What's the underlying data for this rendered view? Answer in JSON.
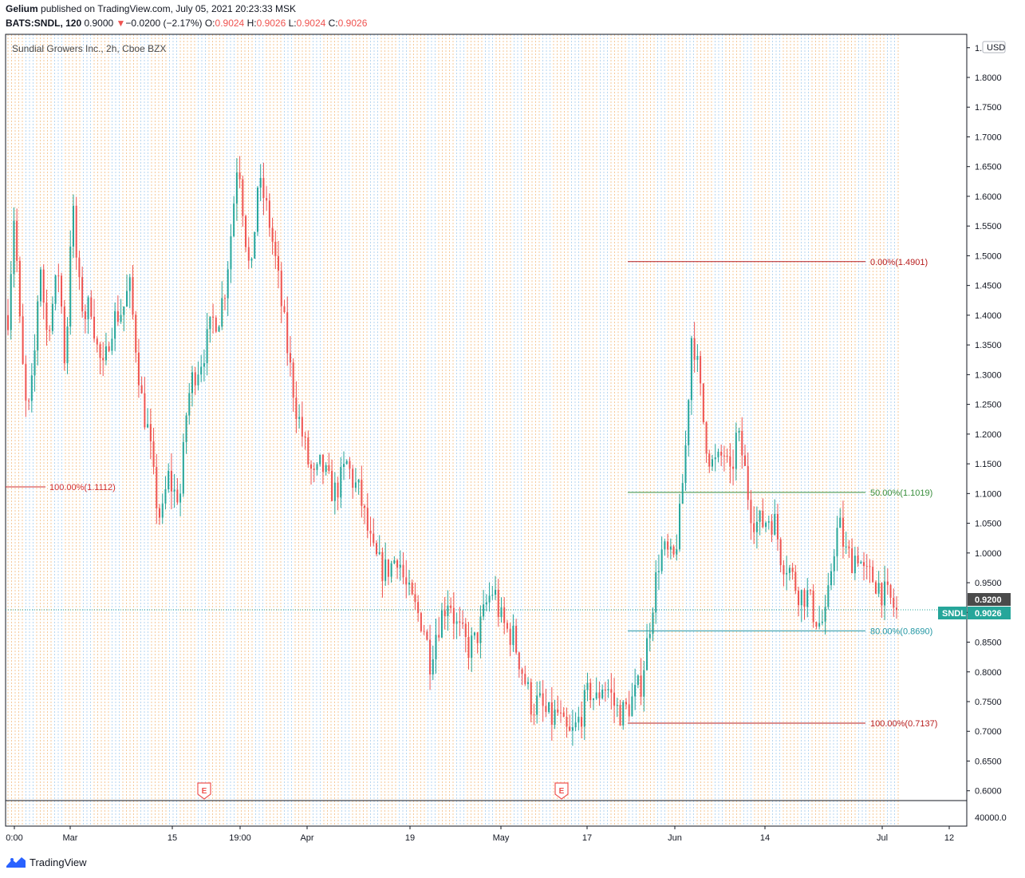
{
  "header": {
    "publisher": "Gelium",
    "published_text": "published on TradingView.com, July 05, 2021 20:23:33 MSK",
    "symbol": "BATS:SNDL, 120",
    "last_price": "0.9000",
    "change_arrow": "▼",
    "change": "−0.0200 (−2.17%)",
    "o_label": "O:",
    "o_value": "0.9024",
    "h_label": "H:",
    "h_value": "0.9026",
    "l_label": "L:",
    "l_value": "0.9024",
    "c_label": "C:",
    "c_value": "0.9026"
  },
  "chart_data": {
    "type": "candlestick",
    "title": "Sundial Growers Inc., 2h, Cboe BZX",
    "currency": "USD",
    "y_ticks": [
      "1.8500",
      "1.8000",
      "1.7500",
      "1.7000",
      "1.6500",
      "1.6000",
      "1.5500",
      "1.5000",
      "1.4500",
      "1.4000",
      "1.3500",
      "1.3000",
      "1.2500",
      "1.2000",
      "1.1500",
      "1.1000",
      "1.0500",
      "1.0000",
      "0.9500",
      "0.9000",
      "0.8500",
      "0.8000",
      "0.7500",
      "0.7000",
      "0.6500",
      "0.6000"
    ],
    "ylim": [
      0.5835,
      1.8725
    ],
    "x_ticks": [
      "0:00",
      "Mar",
      "15",
      "19:00",
      "Apr",
      "19",
      "May",
      "17",
      "Jun",
      "14",
      "Jul",
      "12"
    ],
    "volume_tick": "40000.0",
    "last_price_label": "0.9026",
    "symbol_badge": "SNDL",
    "prev_close_label": "0.9200",
    "earnings_markers": [
      "E",
      "E"
    ],
    "fib_retracements": [
      {
        "level_text": "100.00%(1.1112)",
        "price": 1.1112,
        "color": "#d32f2f"
      },
      {
        "level_text": "0.00%(1.4901)",
        "price": 1.4901,
        "color": "#b71c1c"
      },
      {
        "level_text": "50.00%(1.1019)",
        "price": 1.1019,
        "color": "#388e3c"
      },
      {
        "level_text": "80.00%(0.8690)",
        "price": 0.869,
        "color": "#2196a3"
      },
      {
        "level_text": "100.00%(0.7137)",
        "price": 0.7137,
        "color": "#b71c1c"
      }
    ],
    "series": [
      {
        "approx_path": [
          [
            0,
            1.4
          ],
          [
            1,
            1.58
          ],
          [
            2,
            1.35
          ],
          [
            3,
            1.22
          ],
          [
            4,
            1.3
          ],
          [
            5,
            1.5
          ],
          [
            6,
            1.37
          ],
          [
            7,
            1.42
          ],
          [
            8,
            1.48
          ],
          [
            9,
            1.3
          ],
          [
            10,
            1.6
          ],
          [
            11,
            1.45
          ],
          [
            12,
            1.4
          ],
          [
            13,
            1.42
          ],
          [
            14,
            1.34
          ],
          [
            15,
            1.3
          ],
          [
            16,
            1.38
          ],
          [
            17,
            1.4
          ],
          [
            18,
            1.41
          ],
          [
            19,
            1.45
          ],
          [
            20,
            1.35
          ],
          [
            21,
            1.25
          ],
          [
            22,
            1.2
          ],
          [
            23,
            1.1
          ],
          [
            24,
            1.05
          ],
          [
            25,
            1.13
          ],
          [
            26,
            1.1
          ],
          [
            27,
            1.1
          ],
          [
            28,
            1.25
          ],
          [
            29,
            1.3
          ],
          [
            30,
            1.32
          ],
          [
            31,
            1.35
          ],
          [
            32,
            1.39
          ],
          [
            33,
            1.4
          ],
          [
            34,
            1.45
          ],
          [
            35,
            1.55
          ],
          [
            36,
            1.68
          ],
          [
            37,
            1.55
          ],
          [
            38,
            1.45
          ],
          [
            39,
            1.62
          ],
          [
            40,
            1.6
          ],
          [
            41,
            1.55
          ],
          [
            42,
            1.48
          ],
          [
            43,
            1.4
          ],
          [
            44,
            1.32
          ],
          [
            45,
            1.25
          ],
          [
            46,
            1.2
          ],
          [
            47,
            1.15
          ],
          [
            48,
            1.12
          ],
          [
            49,
            1.15
          ],
          [
            50,
            1.12
          ],
          [
            51,
            1.1
          ],
          [
            52,
            1.12
          ],
          [
            53,
            1.15
          ],
          [
            54,
            1.12
          ],
          [
            55,
            1.1
          ],
          [
            56,
            1.05
          ],
          [
            57,
            1.0
          ],
          [
            58,
            0.98
          ],
          [
            59,
            0.97
          ],
          [
            60,
            0.98
          ],
          [
            61,
            1.0
          ],
          [
            62,
            0.95
          ],
          [
            63,
            0.92
          ],
          [
            64,
            0.9
          ],
          [
            65,
            0.88
          ],
          [
            66,
            0.82
          ],
          [
            67,
            0.87
          ],
          [
            68,
            0.9
          ],
          [
            69,
            0.93
          ],
          [
            70,
            0.88
          ],
          [
            71,
            0.86
          ],
          [
            72,
            0.84
          ],
          [
            73,
            0.85
          ],
          [
            74,
            0.88
          ],
          [
            75,
            0.92
          ],
          [
            76,
            0.94
          ],
          [
            77,
            0.89
          ],
          [
            78,
            0.87
          ],
          [
            79,
            0.86
          ],
          [
            80,
            0.82
          ],
          [
            81,
            0.78
          ],
          [
            82,
            0.74
          ],
          [
            83,
            0.75
          ],
          [
            84,
            0.73
          ],
          [
            85,
            0.72
          ],
          [
            86,
            0.73
          ],
          [
            87,
            0.7
          ],
          [
            88,
            0.69
          ],
          [
            89,
            0.71
          ],
          [
            90,
            0.74
          ],
          [
            91,
            0.77
          ],
          [
            92,
            0.75
          ],
          [
            93,
            0.78
          ],
          [
            94,
            0.77
          ],
          [
            95,
            0.74
          ],
          [
            96,
            0.73
          ],
          [
            97,
            0.74
          ],
          [
            98,
            0.76
          ],
          [
            99,
            0.78
          ],
          [
            100,
            0.85
          ],
          [
            101,
            0.93
          ],
          [
            102,
            1.0
          ],
          [
            103,
            1.0
          ],
          [
            104,
            0.98
          ],
          [
            105,
            1.05
          ],
          [
            106,
            1.18
          ],
          [
            107,
            1.38
          ],
          [
            108,
            1.3
          ],
          [
            109,
            1.2
          ],
          [
            110,
            1.15
          ],
          [
            111,
            1.15
          ],
          [
            112,
            1.17
          ],
          [
            113,
            1.12
          ],
          [
            114,
            1.2
          ],
          [
            115,
            1.16
          ],
          [
            116,
            1.08
          ],
          [
            117,
            1.05
          ],
          [
            118,
            1.05
          ],
          [
            119,
            1.06
          ],
          [
            120,
            1.05
          ],
          [
            121,
            0.99
          ],
          [
            122,
            0.98
          ],
          [
            123,
            0.95
          ],
          [
            124,
            0.93
          ],
          [
            125,
            0.93
          ],
          [
            126,
            0.9
          ],
          [
            127,
            0.88
          ],
          [
            128,
            0.89
          ],
          [
            129,
            1.0
          ],
          [
            130,
            1.05
          ],
          [
            131,
            1.0
          ],
          [
            132,
            0.99
          ],
          [
            133,
            1.0
          ],
          [
            134,
            0.96
          ],
          [
            135,
            0.96
          ],
          [
            136,
            0.95
          ],
          [
            137,
            0.93
          ],
          [
            138,
            0.92
          ],
          [
            139,
            0.9
          ]
        ],
        "x_range": [
          0,
          139
        ]
      }
    ],
    "grid": true
  },
  "branding": {
    "logo_text": "TradingView"
  },
  "colors": {
    "up": "#26a69a",
    "down": "#ef5350",
    "session_orange": "#f5c99a",
    "session_blue": "#b7d6f0"
  }
}
